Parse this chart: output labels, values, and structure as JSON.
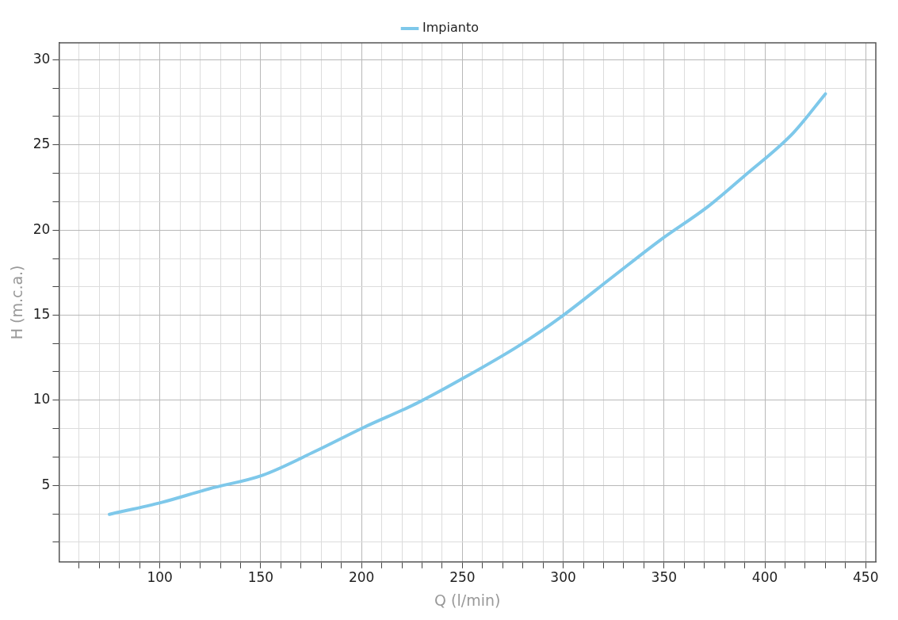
{
  "chart_data": {
    "type": "line",
    "xlabel": "Q (l/min)",
    "ylabel": "H (m.c.a.)",
    "x": [
      75,
      101,
      124.5,
      151,
      177,
      201,
      227,
      249,
      278,
      299,
      324,
      348,
      372,
      390,
      414,
      430
    ],
    "series": [
      {
        "name": "Impianto",
        "color": "#7ec8ea",
        "values": [
          3.3,
          4.0,
          4.8,
          5.6,
          7.0,
          8.4,
          9.8,
          11.2,
          13.2,
          14.9,
          17.2,
          19.4,
          21.4,
          23.2,
          25.7,
          28.0
        ]
      }
    ],
    "xlim": [
      50,
      455
    ],
    "xticks": [
      {
        "value": 60,
        "label": null
      },
      {
        "value": 70,
        "label": null
      },
      {
        "value": 80,
        "label": null
      },
      {
        "value": 90,
        "label": null
      },
      100,
      {
        "value": 110,
        "label": null
      },
      {
        "value": 120,
        "label": null
      },
      {
        "value": 130,
        "label": null
      },
      {
        "value": 140,
        "label": null
      },
      150,
      {
        "value": 160,
        "label": null
      },
      {
        "value": 170,
        "label": null
      },
      {
        "value": 180,
        "label": null
      },
      {
        "value": 190,
        "label": null
      },
      200,
      {
        "value": 210,
        "label": null
      },
      {
        "value": 220,
        "label": null
      },
      {
        "value": 230,
        "label": null
      },
      {
        "value": 240,
        "label": null
      },
      250,
      {
        "value": 260,
        "label": null
      },
      {
        "value": 270,
        "label": null
      },
      {
        "value": 280,
        "label": null
      },
      {
        "value": 290,
        "label": null
      },
      300,
      {
        "value": 310,
        "label": null
      },
      {
        "value": 320,
        "label": null
      },
      {
        "value": 330,
        "label": null
      },
      {
        "value": 340,
        "label": null
      },
      350,
      {
        "value": 360,
        "label": null
      },
      {
        "value": 370,
        "label": null
      },
      {
        "value": 380,
        "label": null
      },
      {
        "value": 390,
        "label": null
      },
      400,
      {
        "value": 410,
        "label": null
      },
      {
        "value": 420,
        "label": null
      },
      {
        "value": 430,
        "label": null
      },
      {
        "value": 440,
        "label": null
      },
      450
    ],
    "ylim": [
      0.5,
      31
    ],
    "yticks": [
      {
        "value": 1.67,
        "label": null
      },
      {
        "value": 3.33,
        "label": null
      },
      5,
      {
        "value": 6.67,
        "label": null
      },
      {
        "value": 8.33,
        "label": null
      },
      10,
      {
        "value": 11.67,
        "label": null
      },
      {
        "value": 13.33,
        "label": null
      },
      15,
      {
        "value": 16.67,
        "label": null
      },
      {
        "value": 18.33,
        "label": null
      },
      20,
      {
        "value": 21.67,
        "label": null
      },
      {
        "value": 23.33,
        "label": null
      },
      25,
      {
        "value": 26.67,
        "label": null
      },
      {
        "value": 28.33,
        "label": null
      },
      30
    ],
    "grid": true,
    "legend": "top",
    "marker": "none",
    "line_style": "solid"
  }
}
